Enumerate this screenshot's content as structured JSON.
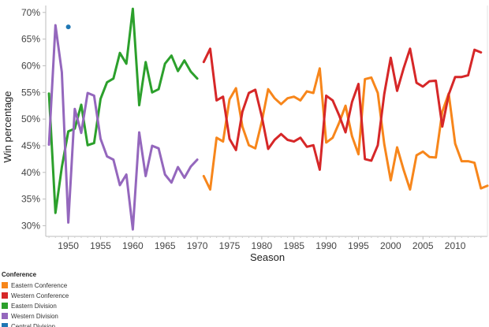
{
  "chart_data": {
    "type": "line",
    "xlabel": "Season",
    "ylabel": "Win percentage",
    "xlim": [
      1946.5,
      2015
    ],
    "ylim": [
      28,
      71.3
    ],
    "x_ticks": [
      1950,
      1955,
      1960,
      1965,
      1970,
      1975,
      1980,
      1985,
      1990,
      1995,
      2000,
      2005,
      2010
    ],
    "y_ticks": [
      30,
      35,
      40,
      45,
      50,
      55,
      60,
      65,
      70
    ],
    "y_tick_format": "%",
    "grid": false,
    "legend": {
      "title": "Conference",
      "placement": "bottom-left"
    },
    "series": [
      {
        "name": "Eastern Conference",
        "color": "#F7861B",
        "points": [
          [
            1971,
            39.3
          ],
          [
            1972,
            36.8
          ],
          [
            1973,
            46.5
          ],
          [
            1974,
            45.8
          ],
          [
            1975,
            53.7
          ],
          [
            1976,
            55.8
          ],
          [
            1977,
            48.6
          ],
          [
            1978,
            45.1
          ],
          [
            1979,
            44.5
          ],
          [
            1980,
            49.5
          ],
          [
            1981,
            55.6
          ],
          [
            1982,
            53.9
          ],
          [
            1983,
            52.8
          ],
          [
            1984,
            53.9
          ],
          [
            1985,
            54.2
          ],
          [
            1986,
            53.5
          ],
          [
            1987,
            55.2
          ],
          [
            1988,
            54.9
          ],
          [
            1989,
            59.5
          ],
          [
            1990,
            45.6
          ],
          [
            1991,
            46.5
          ],
          [
            1992,
            49.3
          ],
          [
            1993,
            52.5
          ],
          [
            1994,
            46.8
          ],
          [
            1995,
            43.4
          ],
          [
            1996,
            57.5
          ],
          [
            1997,
            57.8
          ],
          [
            1998,
            54.9
          ],
          [
            1999,
            45.3
          ],
          [
            2000,
            38.5
          ],
          [
            2001,
            44.7
          ],
          [
            2002,
            40.5
          ],
          [
            2003,
            36.8
          ],
          [
            2004,
            43.2
          ],
          [
            2005,
            43.9
          ],
          [
            2006,
            42.9
          ],
          [
            2007,
            42.8
          ],
          [
            2008,
            51.4
          ],
          [
            2009,
            54.8
          ],
          [
            2010,
            45.4
          ],
          [
            2011,
            42.1
          ],
          [
            2012,
            42.1
          ],
          [
            2013,
            41.8
          ],
          [
            2014,
            37.0
          ],
          [
            2015,
            37.5
          ]
        ]
      },
      {
        "name": "Western Conference",
        "color": "#D62728",
        "points": [
          [
            1971,
            60.7
          ],
          [
            1972,
            63.2
          ],
          [
            1973,
            53.5
          ],
          [
            1974,
            54.2
          ],
          [
            1975,
            46.3
          ],
          [
            1976,
            44.2
          ],
          [
            1977,
            51.4
          ],
          [
            1978,
            54.9
          ],
          [
            1979,
            55.5
          ],
          [
            1980,
            50.5
          ],
          [
            1981,
            44.4
          ],
          [
            1982,
            46.1
          ],
          [
            1983,
            47.2
          ],
          [
            1984,
            46.1
          ],
          [
            1985,
            45.8
          ],
          [
            1986,
            46.5
          ],
          [
            1987,
            44.8
          ],
          [
            1988,
            45.1
          ],
          [
            1989,
            40.5
          ],
          [
            1990,
            54.4
          ],
          [
            1991,
            53.5
          ],
          [
            1992,
            50.7
          ],
          [
            1993,
            47.5
          ],
          [
            1994,
            53.2
          ],
          [
            1995,
            56.6
          ],
          [
            1996,
            42.5
          ],
          [
            1997,
            42.2
          ],
          [
            1998,
            45.1
          ],
          [
            1999,
            54.7
          ],
          [
            2000,
            61.5
          ],
          [
            2001,
            55.3
          ],
          [
            2002,
            59.5
          ],
          [
            2003,
            63.2
          ],
          [
            2004,
            56.8
          ],
          [
            2005,
            56.1
          ],
          [
            2006,
            57.1
          ],
          [
            2007,
            57.2
          ],
          [
            2008,
            48.6
          ],
          [
            2009,
            54.6
          ],
          [
            2010,
            57.9
          ],
          [
            2011,
            57.9
          ],
          [
            2012,
            58.2
          ],
          [
            2013,
            63.0
          ],
          [
            2014,
            62.5
          ]
        ]
      },
      {
        "name": "Eastern Division",
        "color": "#2CA02C",
        "points": [
          [
            1947,
            54.8
          ],
          [
            1948,
            32.4
          ],
          [
            1949,
            41.0
          ],
          [
            1950,
            47.7
          ],
          [
            1951,
            48.2
          ],
          [
            1952,
            52.7
          ],
          [
            1953,
            45.1
          ],
          [
            1954,
            45.5
          ],
          [
            1955,
            53.8
          ],
          [
            1956,
            56.9
          ],
          [
            1957,
            57.6
          ],
          [
            1958,
            62.4
          ],
          [
            1959,
            60.4
          ],
          [
            1960,
            70.7
          ],
          [
            1961,
            52.6
          ],
          [
            1962,
            60.7
          ],
          [
            1963,
            55.0
          ],
          [
            1964,
            55.6
          ],
          [
            1965,
            60.4
          ],
          [
            1966,
            61.9
          ],
          [
            1967,
            59.0
          ],
          [
            1968,
            61.0
          ],
          [
            1969,
            58.9
          ],
          [
            1970,
            57.6
          ]
        ]
      },
      {
        "name": "Western Division",
        "color": "#9467BD",
        "points": [
          [
            1947,
            45.2
          ],
          [
            1948,
            67.6
          ],
          [
            1949,
            58.8
          ],
          [
            1950,
            30.6
          ],
          [
            1951,
            51.9
          ],
          [
            1952,
            47.4
          ],
          [
            1953,
            54.9
          ],
          [
            1954,
            54.4
          ],
          [
            1955,
            46.3
          ],
          [
            1956,
            43.0
          ],
          [
            1957,
            42.4
          ],
          [
            1958,
            37.6
          ],
          [
            1959,
            39.6
          ],
          [
            1960,
            29.3
          ],
          [
            1961,
            47.5
          ],
          [
            1962,
            39.3
          ],
          [
            1963,
            45.0
          ],
          [
            1964,
            44.5
          ],
          [
            1965,
            39.6
          ],
          [
            1966,
            38.1
          ],
          [
            1967,
            41.0
          ],
          [
            1968,
            39.0
          ],
          [
            1969,
            41.1
          ],
          [
            1970,
            42.4
          ]
        ]
      },
      {
        "name": "Central Division",
        "color": "#1F77B4",
        "points": [
          [
            1950,
            67.3
          ]
        ]
      }
    ]
  }
}
